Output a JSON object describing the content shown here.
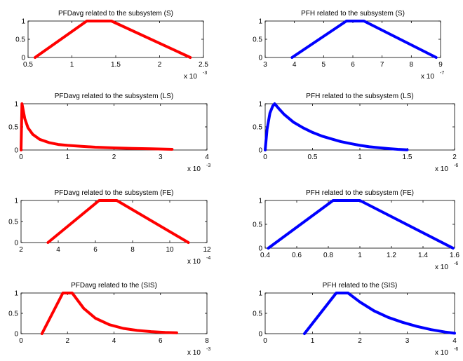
{
  "chart_data": [
    {
      "type": "line",
      "title": "PFDavg related to the subsystem (S)",
      "color": "#ff0000",
      "xlim": [
        0.5,
        2.5
      ],
      "ylim": [
        0,
        1
      ],
      "xticks": [
        "0.5",
        "1",
        "1.5",
        "2",
        "2.5"
      ],
      "yticks": [
        "0",
        "0.5",
        "1"
      ],
      "x_multiplier": "x 10",
      "x_exponent": "-3",
      "series": [
        {
          "x": [
            0.58,
            1.17,
            1.45,
            2.35
          ],
          "y": [
            0,
            1,
            1,
            0
          ]
        }
      ]
    },
    {
      "type": "line",
      "title": "PFH related to the subsystem (S)",
      "color": "#0000ff",
      "xlim": [
        3,
        9
      ],
      "ylim": [
        0,
        1
      ],
      "xticks": [
        "3",
        "4",
        "5",
        "6",
        "7",
        "8",
        "9"
      ],
      "yticks": [
        "0",
        "0.5",
        "1"
      ],
      "x_multiplier": "x 10",
      "x_exponent": "-7",
      "series": [
        {
          "x": [
            3.92,
            5.78,
            6.38,
            8.85
          ],
          "y": [
            0,
            1,
            1,
            0
          ]
        }
      ]
    },
    {
      "type": "line",
      "title": "PFDavg related to the subsystem (LS)",
      "color": "#ff0000",
      "xlim": [
        0,
        4
      ],
      "ylim": [
        0,
        1
      ],
      "xticks": [
        "0",
        "1",
        "2",
        "3",
        "4"
      ],
      "yticks": [
        "0",
        "0.5",
        "1"
      ],
      "x_multiplier": "x 10",
      "x_exponent": "-3",
      "series": [
        {
          "x": [
            0.0,
            0.02,
            0.04,
            0.08,
            0.15,
            0.25,
            0.4,
            0.6,
            0.8,
            1.0,
            1.3,
            1.6,
            2.0,
            2.4,
            2.8,
            3.25
          ],
          "y": [
            0.0,
            1.0,
            0.9,
            0.68,
            0.48,
            0.34,
            0.23,
            0.16,
            0.12,
            0.1,
            0.08,
            0.06,
            0.045,
            0.035,
            0.025,
            0.015
          ]
        }
      ]
    },
    {
      "type": "line",
      "title": "PFH related to the subsystem (LS)",
      "color": "#0000ff",
      "xlim": [
        0,
        2
      ],
      "ylim": [
        0,
        1
      ],
      "xticks": [
        "0",
        "0.5",
        "1",
        "1.5",
        "2"
      ],
      "yticks": [
        "0",
        "0.5",
        "1"
      ],
      "x_multiplier": "x 10",
      "x_exponent": "-6",
      "series": [
        {
          "x": [
            0.0,
            0.02,
            0.05,
            0.08,
            0.1,
            0.15,
            0.2,
            0.3,
            0.4,
            0.5,
            0.6,
            0.7,
            0.8,
            0.9,
            1.0,
            1.1,
            1.2,
            1.3,
            1.4,
            1.5
          ],
          "y": [
            0.0,
            0.45,
            0.8,
            0.95,
            1.0,
            0.88,
            0.77,
            0.6,
            0.48,
            0.38,
            0.3,
            0.24,
            0.18,
            0.14,
            0.1,
            0.07,
            0.05,
            0.03,
            0.015,
            0.005
          ]
        }
      ]
    },
    {
      "type": "line",
      "title": "PFDavg related to the subsystem (FE)",
      "color": "#ff0000",
      "xlim": [
        2,
        12
      ],
      "ylim": [
        0,
        1
      ],
      "xticks": [
        "2",
        "4",
        "6",
        "8",
        "10",
        "12"
      ],
      "yticks": [
        "0",
        "0.5",
        "1"
      ],
      "x_multiplier": "x 10",
      "x_exponent": "-4",
      "series": [
        {
          "x": [
            3.45,
            6.2,
            7.15,
            11.0
          ],
          "y": [
            0,
            1,
            1,
            0
          ]
        }
      ]
    },
    {
      "type": "line",
      "title": "PFH related to the subsystem (FE)",
      "color": "#0000ff",
      "xlim": [
        0.4,
        1.6
      ],
      "ylim": [
        0,
        1
      ],
      "xticks": [
        "0.4",
        "0.6",
        "0.8",
        "1",
        "1.2",
        "1.4",
        "1.6"
      ],
      "yticks": [
        "0",
        "0.5",
        "1"
      ],
      "x_multiplier": "x 10",
      "x_exponent": "-6",
      "series": [
        {
          "x": [
            0.42,
            0.83,
            1.0,
            1.59
          ],
          "y": [
            0,
            1,
            1,
            0
          ]
        }
      ]
    },
    {
      "type": "line",
      "title": "PFDavg related to the (SIS)",
      "color": "#ff0000",
      "xlim": [
        0,
        8
      ],
      "ylim": [
        0,
        1
      ],
      "xticks": [
        "0",
        "2",
        "4",
        "6",
        "8"
      ],
      "yticks": [
        "0",
        "0.5",
        "1"
      ],
      "x_multiplier": "x 10",
      "x_exponent": "-3",
      "series": [
        {
          "x": [
            0.9,
            1.8,
            2.2,
            2.7,
            3.2,
            3.8,
            4.4,
            5.0,
            5.6,
            6.2,
            6.7
          ],
          "y": [
            0,
            1,
            1,
            0.62,
            0.38,
            0.22,
            0.13,
            0.08,
            0.05,
            0.03,
            0.02
          ]
        }
      ]
    },
    {
      "type": "line",
      "title": "PFH related to the (SIS)",
      "color": "#0000ff",
      "xlim": [
        0,
        4
      ],
      "ylim": [
        0,
        1
      ],
      "xticks": [
        "0",
        "1",
        "2",
        "3",
        "4"
      ],
      "yticks": [
        "0",
        "0.5",
        "1"
      ],
      "x_multiplier": "x 10",
      "x_exponent": "-6",
      "series": [
        {
          "x": [
            0.83,
            1.5,
            1.75,
            2.0,
            2.3,
            2.6,
            2.9,
            3.2,
            3.5,
            3.8,
            4.0
          ],
          "y": [
            0,
            1,
            1,
            0.78,
            0.56,
            0.4,
            0.28,
            0.18,
            0.1,
            0.04,
            0.01
          ]
        }
      ]
    }
  ]
}
